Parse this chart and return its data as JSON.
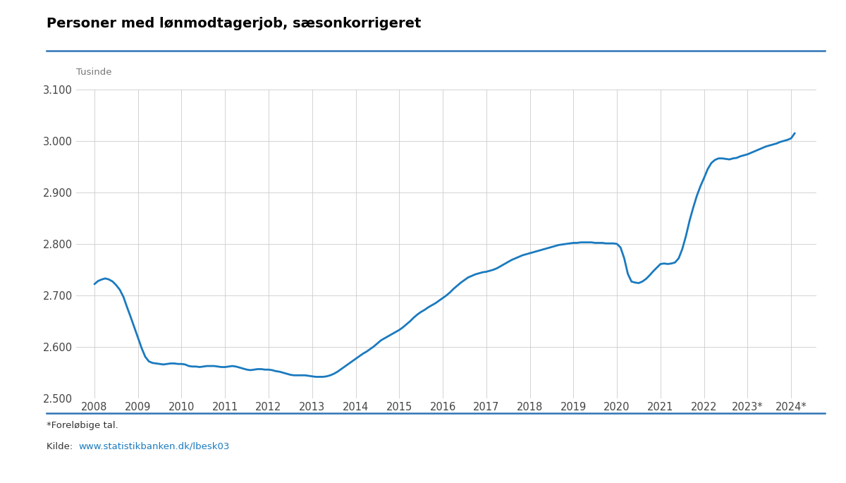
{
  "title": "Personer med lønmodtagerjob, sæsonkorrigeret",
  "ylabel": "Tusinde",
  "footnote": "*Foreløbige tal.",
  "source_prefix": "Kilde: ",
  "source_text": "www.statistikbanken.dk/lbesk03",
  "source_color": "#1a7abf",
  "title_color": "#000000",
  "line_color": "#1a7abf",
  "background_color": "#ffffff",
  "grid_color": "#cccccc",
  "ylim": [
    2500,
    3100
  ],
  "yticks": [
    2500,
    2600,
    2700,
    2800,
    2900,
    3000,
    3100
  ],
  "title_line_color": "#2e75b6",
  "bottom_line_color": "#2e75b6",
  "x_values": [
    2008.0,
    2008.083,
    2008.167,
    2008.25,
    2008.333,
    2008.417,
    2008.5,
    2008.583,
    2008.667,
    2008.75,
    2008.833,
    2008.917,
    2009.0,
    2009.083,
    2009.167,
    2009.25,
    2009.333,
    2009.417,
    2009.5,
    2009.583,
    2009.667,
    2009.75,
    2009.833,
    2009.917,
    2010.0,
    2010.083,
    2010.167,
    2010.25,
    2010.333,
    2010.417,
    2010.5,
    2010.583,
    2010.667,
    2010.75,
    2010.833,
    2010.917,
    2011.0,
    2011.083,
    2011.167,
    2011.25,
    2011.333,
    2011.417,
    2011.5,
    2011.583,
    2011.667,
    2011.75,
    2011.833,
    2011.917,
    2012.0,
    2012.083,
    2012.167,
    2012.25,
    2012.333,
    2012.417,
    2012.5,
    2012.583,
    2012.667,
    2012.75,
    2012.833,
    2012.917,
    2013.0,
    2013.083,
    2013.167,
    2013.25,
    2013.333,
    2013.417,
    2013.5,
    2013.583,
    2013.667,
    2013.75,
    2013.833,
    2013.917,
    2014.0,
    2014.083,
    2014.167,
    2014.25,
    2014.333,
    2014.417,
    2014.5,
    2014.583,
    2014.667,
    2014.75,
    2014.833,
    2014.917,
    2015.0,
    2015.083,
    2015.167,
    2015.25,
    2015.333,
    2015.417,
    2015.5,
    2015.583,
    2015.667,
    2015.75,
    2015.833,
    2015.917,
    2016.0,
    2016.083,
    2016.167,
    2016.25,
    2016.333,
    2016.417,
    2016.5,
    2016.583,
    2016.667,
    2016.75,
    2016.833,
    2016.917,
    2017.0,
    2017.083,
    2017.167,
    2017.25,
    2017.333,
    2017.417,
    2017.5,
    2017.583,
    2017.667,
    2017.75,
    2017.833,
    2017.917,
    2018.0,
    2018.083,
    2018.167,
    2018.25,
    2018.333,
    2018.417,
    2018.5,
    2018.583,
    2018.667,
    2018.75,
    2018.833,
    2018.917,
    2019.0,
    2019.083,
    2019.167,
    2019.25,
    2019.333,
    2019.417,
    2019.5,
    2019.583,
    2019.667,
    2019.75,
    2019.833,
    2019.917,
    2020.0,
    2020.083,
    2020.167,
    2020.25,
    2020.333,
    2020.417,
    2020.5,
    2020.583,
    2020.667,
    2020.75,
    2020.833,
    2020.917,
    2021.0,
    2021.083,
    2021.167,
    2021.25,
    2021.333,
    2021.417,
    2021.5,
    2021.583,
    2021.667,
    2021.75,
    2021.833,
    2021.917,
    2022.0,
    2022.083,
    2022.167,
    2022.25,
    2022.333,
    2022.417,
    2022.5,
    2022.583,
    2022.667,
    2022.75,
    2022.833,
    2022.917,
    2023.0,
    2023.083,
    2023.167,
    2023.25,
    2023.333,
    2023.417,
    2023.5,
    2023.583,
    2023.667,
    2023.75,
    2023.833,
    2023.917,
    2024.0,
    2024.083
  ],
  "y_values": [
    2722,
    2728,
    2731,
    2733,
    2731,
    2727,
    2720,
    2711,
    2697,
    2677,
    2658,
    2638,
    2618,
    2598,
    2581,
    2572,
    2569,
    2568,
    2567,
    2566,
    2567,
    2568,
    2568,
    2567,
    2567,
    2566,
    2563,
    2562,
    2562,
    2561,
    2562,
    2563,
    2563,
    2563,
    2562,
    2561,
    2561,
    2562,
    2563,
    2562,
    2560,
    2558,
    2556,
    2555,
    2556,
    2557,
    2557,
    2556,
    2556,
    2555,
    2553,
    2552,
    2550,
    2548,
    2546,
    2545,
    2545,
    2545,
    2545,
    2544,
    2543,
    2542,
    2542,
    2542,
    2543,
    2545,
    2548,
    2552,
    2557,
    2562,
    2567,
    2572,
    2577,
    2582,
    2587,
    2591,
    2596,
    2601,
    2607,
    2613,
    2617,
    2621,
    2625,
    2629,
    2633,
    2638,
    2644,
    2650,
    2657,
    2663,
    2668,
    2672,
    2677,
    2681,
    2685,
    2690,
    2695,
    2700,
    2706,
    2713,
    2719,
    2725,
    2730,
    2735,
    2738,
    2741,
    2743,
    2745,
    2746,
    2748,
    2750,
    2753,
    2757,
    2761,
    2765,
    2769,
    2772,
    2775,
    2778,
    2780,
    2782,
    2784,
    2786,
    2788,
    2790,
    2792,
    2794,
    2796,
    2798,
    2799,
    2800,
    2801,
    2802,
    2802,
    2803,
    2803,
    2803,
    2803,
    2802,
    2802,
    2802,
    2801,
    2801,
    2801,
    2800,
    2793,
    2772,
    2742,
    2727,
    2725,
    2724,
    2727,
    2732,
    2739,
    2747,
    2754,
    2761,
    2762,
    2761,
    2762,
    2764,
    2772,
    2790,
    2815,
    2845,
    2870,
    2893,
    2912,
    2928,
    2945,
    2957,
    2963,
    2966,
    2966,
    2965,
    2964,
    2966,
    2967,
    2970,
    2972,
    2974,
    2977,
    2980,
    2983,
    2986,
    2989,
    2991,
    2993,
    2995,
    2998,
    3000,
    3002,
    3005,
    3015
  ],
  "xtick_labels": [
    "2008",
    "2009",
    "2010",
    "2011",
    "2012",
    "2013",
    "2014",
    "2015",
    "2016",
    "2017",
    "2018",
    "2019",
    "2020",
    "2021",
    "2022",
    "2023*",
    "2024*"
  ],
  "xtick_positions": [
    2008,
    2009,
    2010,
    2011,
    2012,
    2013,
    2014,
    2015,
    2016,
    2017,
    2018,
    2019,
    2020,
    2021,
    2022,
    2023,
    2024
  ]
}
